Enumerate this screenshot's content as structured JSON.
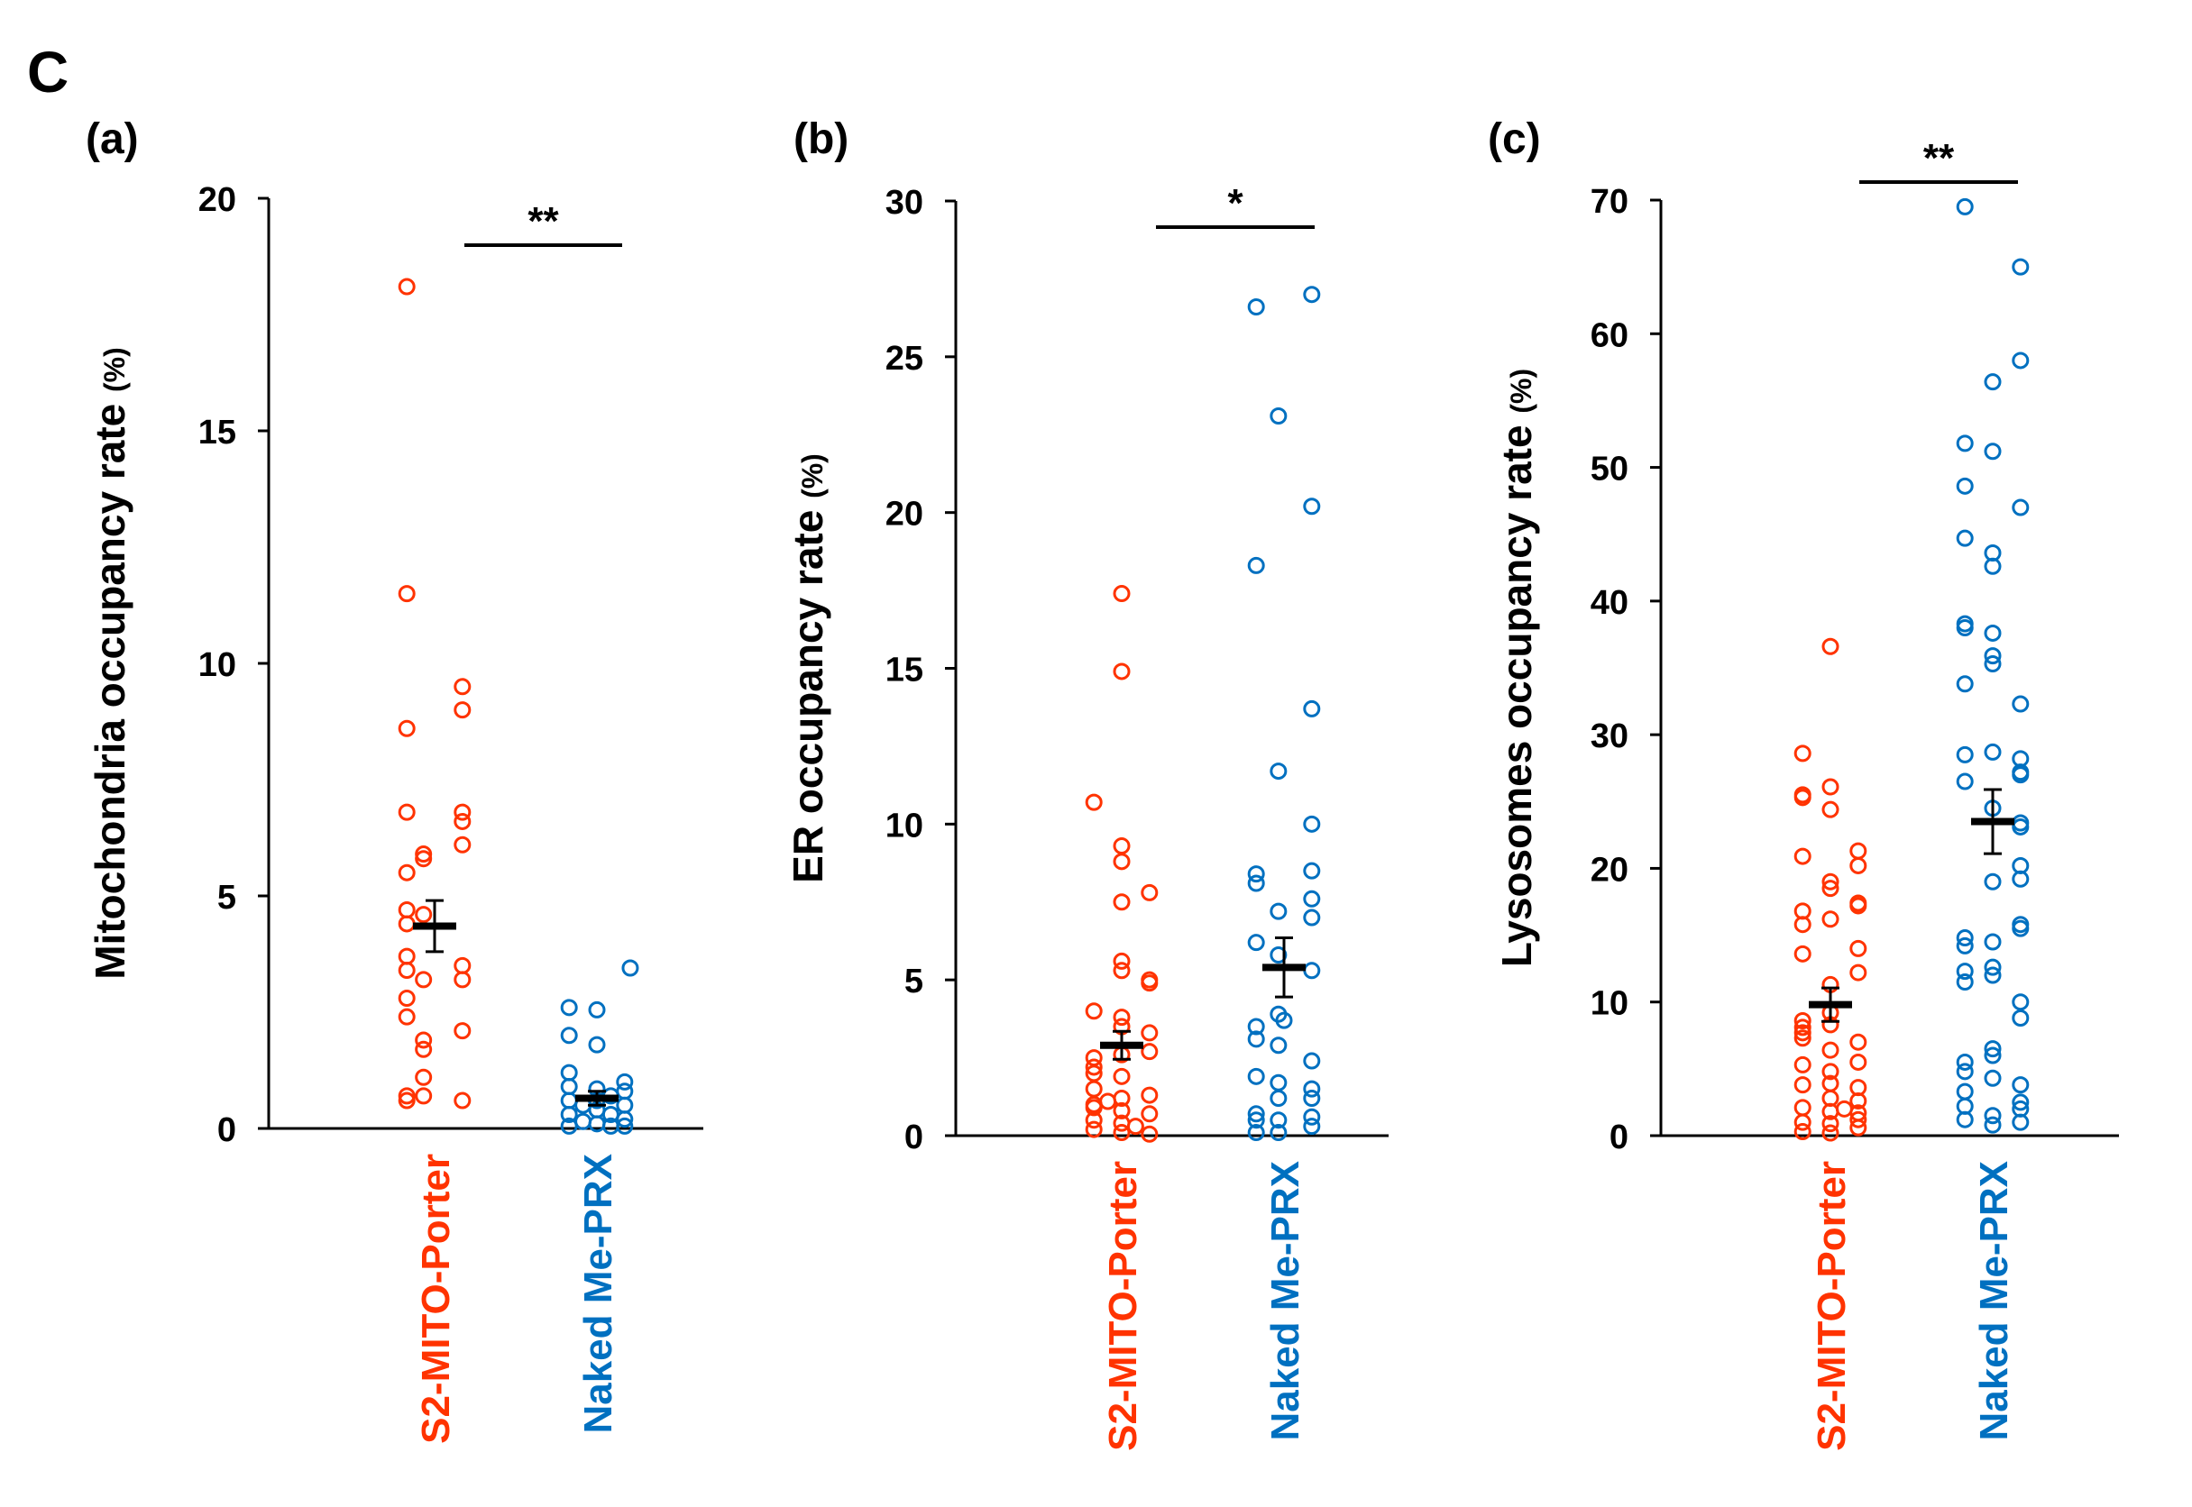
{
  "figure_label": "C",
  "colors": {
    "group1": "#ff3300",
    "group2": "#0070c0",
    "axis": "#000000"
  },
  "chart_data": [
    {
      "type": "scatter",
      "panel_label": "(a)",
      "ylabel_main": "Mitochondria occupancy rate",
      "ylabel_unit": "(%)",
      "ylim": [
        0,
        20
      ],
      "yticks": [
        "0",
        "5",
        "10",
        "15",
        "20"
      ],
      "ytick_values": [
        0,
        5,
        10,
        15,
        20
      ],
      "categories": [
        "S2-MITO-Porter",
        "Naked Me-PRX"
      ],
      "significance": "**",
      "series": [
        {
          "name": "S2-MITO-Porter",
          "mean": 4.35,
          "sem": 0.55,
          "points": [
            [
              -1,
              18.1
            ],
            [
              -1,
              11.5
            ],
            [
              1,
              9.5
            ],
            [
              1,
              9.0
            ],
            [
              -1,
              8.6
            ],
            [
              -1,
              6.8
            ],
            [
              1,
              6.8
            ],
            [
              1,
              6.6
            ],
            [
              1,
              6.1
            ],
            [
              -0.4,
              5.9
            ],
            [
              -0.4,
              5.8
            ],
            [
              -1,
              5.5
            ],
            [
              -1,
              4.7
            ],
            [
              -1,
              4.4
            ],
            [
              -0.4,
              4.6
            ],
            [
              -1,
              3.7
            ],
            [
              -1,
              3.4
            ],
            [
              1,
              3.5
            ],
            [
              1,
              3.2
            ],
            [
              -0.4,
              3.2
            ],
            [
              -1,
              2.8
            ],
            [
              -1,
              2.4
            ],
            [
              1,
              2.1
            ],
            [
              -0.4,
              1.9
            ],
            [
              -0.4,
              1.7
            ],
            [
              -1,
              0.7
            ],
            [
              -1,
              0.6
            ],
            [
              -0.4,
              1.1
            ],
            [
              -0.4,
              0.7
            ],
            [
              1,
              0.6
            ]
          ]
        },
        {
          "name": "Naked Me-PRX",
          "mean": 0.65,
          "sem": 0.15,
          "points": [
            [
              -1,
              2.6
            ],
            [
              0,
              2.55
            ],
            [
              1.2,
              3.45
            ],
            [
              -1,
              2.0
            ],
            [
              0,
              1.8
            ],
            [
              -1,
              1.2
            ],
            [
              -1,
              0.9
            ],
            [
              0,
              0.85
            ],
            [
              1,
              1.0
            ],
            [
              -1,
              0.6
            ],
            [
              0,
              0.6
            ],
            [
              1,
              0.8
            ],
            [
              -1,
              0.3
            ],
            [
              0,
              0.4
            ],
            [
              1,
              0.5
            ],
            [
              -1,
              0.05
            ],
            [
              0,
              0.1
            ],
            [
              1,
              0.2
            ],
            [
              0.5,
              0.7
            ],
            [
              -0.5,
              0.5
            ],
            [
              0.5,
              0.3
            ],
            [
              -0.5,
              0.15
            ],
            [
              1,
              0.05
            ],
            [
              0.5,
              0.05
            ]
          ]
        }
      ]
    },
    {
      "type": "scatter",
      "panel_label": "(b)",
      "ylabel_main": "ER occupancy rate",
      "ylabel_unit": "(%)",
      "ylim": [
        0,
        30
      ],
      "yticks": [
        "0",
        "5",
        "10",
        "15",
        "20",
        "25",
        "30"
      ],
      "ytick_values": [
        0,
        5,
        10,
        15,
        20,
        25,
        30
      ],
      "categories": [
        "S2-MITO-Porter",
        "Naked Me-PRX"
      ],
      "significance": "*",
      "series": [
        {
          "name": "S2-MITO-Porter",
          "mean": 2.9,
          "sem": 0.45,
          "points": [
            [
              0,
              17.4
            ],
            [
              0,
              14.9
            ],
            [
              -1,
              10.7
            ],
            [
              0,
              9.3
            ],
            [
              0,
              8.8
            ],
            [
              1,
              7.8
            ],
            [
              0,
              7.5
            ],
            [
              0,
              5.6
            ],
            [
              0,
              5.3
            ],
            [
              1,
              5.0
            ],
            [
              1,
              4.9
            ],
            [
              -1,
              4.0
            ],
            [
              0,
              3.8
            ],
            [
              0,
              3.5
            ],
            [
              1,
              3.3
            ],
            [
              -1,
              2.5
            ],
            [
              -1,
              2.2
            ],
            [
              -1,
              2.0
            ],
            [
              0,
              2.6
            ],
            [
              1,
              2.7
            ],
            [
              0,
              1.9
            ],
            [
              -1,
              1.5
            ],
            [
              0,
              1.2
            ],
            [
              1,
              1.3
            ],
            [
              -1,
              0.9
            ],
            [
              0,
              0.8
            ],
            [
              1,
              0.7
            ],
            [
              -1,
              0.5
            ],
            [
              0,
              0.4
            ],
            [
              -1,
              0.2
            ],
            [
              0,
              0.1
            ],
            [
              1,
              0.05
            ],
            [
              -0.5,
              1.1
            ],
            [
              0.5,
              0.3
            ],
            [
              -1,
              1.0
            ]
          ]
        },
        {
          "name": "Naked Me-PRX",
          "mean": 5.4,
          "sem": 0.95,
          "points": [
            [
              1,
              27.0
            ],
            [
              -1,
              26.6
            ],
            [
              -0.2,
              23.1
            ],
            [
              1,
              20.2
            ],
            [
              -1,
              18.3
            ],
            [
              1,
              13.7
            ],
            [
              -0.2,
              11.7
            ],
            [
              1,
              10.0
            ],
            [
              1,
              8.5
            ],
            [
              -1,
              8.4
            ],
            [
              -1,
              8.1
            ],
            [
              1,
              7.6
            ],
            [
              -0.2,
              7.2
            ],
            [
              1,
              7.0
            ],
            [
              -1,
              6.2
            ],
            [
              -0.2,
              5.8
            ],
            [
              1,
              5.3
            ],
            [
              -0.2,
              3.9
            ],
            [
              -1,
              3.5
            ],
            [
              0,
              3.7
            ],
            [
              -1,
              3.1
            ],
            [
              -0.2,
              2.9
            ],
            [
              1,
              2.4
            ],
            [
              -1,
              1.9
            ],
            [
              -0.2,
              1.7
            ],
            [
              1,
              1.5
            ],
            [
              1,
              1.2
            ],
            [
              -0.2,
              1.2
            ],
            [
              -1,
              0.7
            ],
            [
              -1,
              0.5
            ],
            [
              -0.2,
              0.5
            ],
            [
              1,
              0.6
            ],
            [
              1,
              0.3
            ],
            [
              -1,
              0.1
            ],
            [
              -0.2,
              0.1
            ]
          ]
        }
      ]
    },
    {
      "type": "scatter",
      "panel_label": "(c)",
      "ylabel_main": "Lysosomes occupancy rate",
      "ylabel_unit": "(%)",
      "ylim": [
        0,
        70
      ],
      "yticks": [
        "0",
        "10",
        "20",
        "30",
        "40",
        "50",
        "60",
        "70"
      ],
      "ytick_values": [
        0,
        10,
        20,
        30,
        40,
        50,
        60,
        70
      ],
      "categories": [
        "S2-MITO-Porter",
        "Naked Me-PRX"
      ],
      "significance": "**",
      "series": [
        {
          "name": "S2-MITO-Porter",
          "mean": 9.8,
          "sem": 1.25,
          "points": [
            [
              0,
              36.6
            ],
            [
              -1,
              28.6
            ],
            [
              0,
              26.1
            ],
            [
              -1,
              25.5
            ],
            [
              -1,
              25.3
            ],
            [
              0,
              24.4
            ],
            [
              1,
              21.3
            ],
            [
              -1,
              20.9
            ],
            [
              1,
              20.2
            ],
            [
              0,
              19.0
            ],
            [
              0,
              18.5
            ],
            [
              1,
              17.4
            ],
            [
              -1,
              16.8
            ],
            [
              1,
              17.2
            ],
            [
              -1,
              15.8
            ],
            [
              0,
              16.2
            ],
            [
              1,
              14.0
            ],
            [
              -1,
              13.6
            ],
            [
              1,
              12.2
            ],
            [
              0,
              11.3
            ],
            [
              -1,
              8.6
            ],
            [
              -1,
              8.1
            ],
            [
              -1,
              7.7
            ],
            [
              0,
              9.2
            ],
            [
              0,
              8.3
            ],
            [
              1,
              7.0
            ],
            [
              -1,
              7.3
            ],
            [
              0,
              6.4
            ],
            [
              -1,
              5.3
            ],
            [
              1,
              5.5
            ],
            [
              0,
              4.8
            ],
            [
              -1,
              3.8
            ],
            [
              0,
              3.9
            ],
            [
              1,
              3.6
            ],
            [
              0,
              2.8
            ],
            [
              1,
              2.6
            ],
            [
              -1,
              2.1
            ],
            [
              0,
              1.8
            ],
            [
              1,
              1.7
            ],
            [
              -1,
              1.0
            ],
            [
              0,
              0.9
            ],
            [
              1,
              0.6
            ],
            [
              -1,
              0.3
            ],
            [
              0,
              0.2
            ],
            [
              1,
              1.2
            ],
            [
              0.5,
              2.0
            ]
          ]
        },
        {
          "name": "Naked Me-PRX",
          "mean": 23.5,
          "sem": 2.4,
          "points": [
            [
              -1,
              69.5
            ],
            [
              1,
              65.0
            ],
            [
              1,
              58.0
            ],
            [
              0,
              56.4
            ],
            [
              -1,
              51.8
            ],
            [
              0,
              51.2
            ],
            [
              -1,
              48.6
            ],
            [
              1,
              47.0
            ],
            [
              -1,
              44.7
            ],
            [
              0,
              43.6
            ],
            [
              0,
              42.6
            ],
            [
              -1,
              38.3
            ],
            [
              -1,
              38.0
            ],
            [
              0,
              37.6
            ],
            [
              0,
              35.9
            ],
            [
              0,
              35.3
            ],
            [
              -1,
              33.8
            ],
            [
              1,
              32.3
            ],
            [
              0,
              28.7
            ],
            [
              -1,
              28.5
            ],
            [
              1,
              28.2
            ],
            [
              1,
              27.2
            ],
            [
              1,
              27.0
            ],
            [
              -1,
              26.5
            ],
            [
              0,
              24.5
            ],
            [
              1,
              23.4
            ],
            [
              1,
              23.1
            ],
            [
              1,
              20.2
            ],
            [
              0,
              19.0
            ],
            [
              1,
              19.2
            ],
            [
              1,
              15.8
            ],
            [
              1,
              15.5
            ],
            [
              -1,
              14.8
            ],
            [
              -1,
              14.2
            ],
            [
              0,
              14.5
            ],
            [
              0,
              12.6
            ],
            [
              -1,
              12.3
            ],
            [
              0,
              12.0
            ],
            [
              -1,
              11.5
            ],
            [
              1,
              10.0
            ],
            [
              1,
              8.8
            ],
            [
              0,
              6.5
            ],
            [
              0,
              6.0
            ],
            [
              -1,
              5.5
            ],
            [
              -1,
              4.8
            ],
            [
              0,
              4.3
            ],
            [
              1,
              3.8
            ],
            [
              -1,
              3.3
            ],
            [
              1,
              2.5
            ],
            [
              -1,
              2.2
            ],
            [
              1,
              2.0
            ],
            [
              0,
              1.5
            ],
            [
              -1,
              1.2
            ],
            [
              1,
              1.0
            ],
            [
              0,
              0.8
            ]
          ]
        }
      ]
    }
  ]
}
